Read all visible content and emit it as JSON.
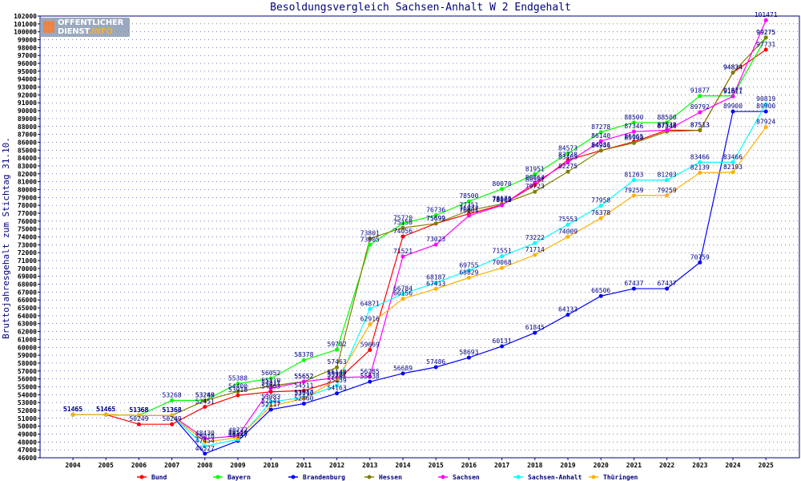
{
  "logo": {
    "line1": "OFFENTLICHER",
    "line2_a": "DIENST",
    "line2_b": ".INFO"
  },
  "chart_data": {
    "type": "line",
    "title": "Besoldungsvergleich Sachsen-Anhalt W 2 Endgehalt",
    "xlabel": "",
    "ylabel": "Bruttojahresgehalt zum Stichtag 31.10.",
    "ylim": [
      46000,
      102000
    ],
    "ytick_step": 1000,
    "categories": [
      "2004",
      "2005",
      "2006",
      "2007",
      "2008",
      "2009",
      "2010",
      "2011",
      "2012",
      "2013",
      "2014",
      "2015",
      "2016",
      "2017",
      "2018",
      "2019",
      "2020",
      "2021",
      "2022",
      "2023",
      "2024",
      "2025"
    ],
    "series": [
      {
        "name": "Bund",
        "color": "#ff0000",
        "values": [
          51465,
          51465,
          50249,
          50249,
          52451,
          53918,
          54363,
          54511,
          55787,
          59669,
          74056,
          75692,
          76932,
          78063,
          80581,
          83738,
          84946,
          86065,
          87538,
          87513,
          94834,
          97731
        ],
        "labels": [
          "51465",
          "51465",
          "50249",
          "50249",
          "52451",
          "53918",
          "54363",
          "54511",
          "55787",
          "59669",
          "74056",
          "75692",
          "76932",
          "78063",
          "80581",
          "83738",
          "84946",
          "86065",
          "87538",
          "87513",
          "94834",
          "97731"
        ]
      },
      {
        "name": "Bayern",
        "color": "#00ff00",
        "values": [
          51465,
          51465,
          51368,
          53268,
          53268,
          55388,
          56052,
          58378,
          59702,
          73005,
          75720,
          76736,
          78500,
          80070,
          81951,
          84573,
          87278,
          88500,
          88500,
          91877,
          91877,
          99275
        ],
        "labels": [
          "51465",
          "51465",
          "51368",
          "53268",
          "53268",
          "55388",
          "56052",
          "58378",
          "59702",
          "73005",
          "75720",
          "76736",
          "78500",
          "80070",
          "81951",
          "84573",
          "87278",
          "88500",
          "88500",
          "91877",
          "91877",
          "99275"
        ]
      },
      {
        "name": "Brandenburg",
        "color": "#0000ff",
        "values": [
          51465,
          51465,
          51368,
          51368,
          46527,
          48137,
          52117,
          52860,
          54163,
          55638,
          56689,
          57486,
          58693,
          60131,
          61845,
          64133,
          66506,
          67437,
          67437,
          70759,
          89900,
          89900
        ],
        "labels": [
          "51465",
          "51465",
          "51368",
          "51368",
          "46527",
          "48137",
          "52117",
          "52860",
          "54163",
          "55638",
          "56689",
          "57486",
          "58693",
          "60131",
          "61845",
          "64133",
          "66506",
          "67437",
          "67437",
          "70759",
          "89900",
          "89900"
        ]
      },
      {
        "name": "Hessen",
        "color": "#808000",
        "values": [
          51465,
          51465,
          51368,
          51368,
          53249,
          54400,
          55110,
          55652,
          57463,
          73801,
          75158,
          75699,
          77351,
          78176,
          79723,
          82275,
          84951,
          85908,
          87346,
          87513,
          94834,
          99275
        ],
        "labels": [
          "51465",
          "51465",
          "51368",
          "51368",
          "53249",
          "54400",
          "55110",
          "55652",
          "57463",
          "73801",
          "75158",
          "75699",
          "77351",
          "78176",
          "79723",
          "82275",
          "84951",
          "85908",
          "87346",
          "87513",
          "94834",
          "99275"
        ]
      },
      {
        "name": "Sachsen",
        "color": "#ff00ff",
        "values": [
          51465,
          51465,
          51368,
          51368,
          48430,
          48777,
          54811,
          55652,
          56148,
          56285,
          71521,
          73023,
          76681,
          78002,
          80864,
          83465,
          86140,
          87346,
          87533,
          89792,
          91811,
          101471
        ],
        "labels": [
          "51465",
          "51465",
          "51368",
          "51368",
          "48430",
          "48777",
          "54811",
          "55652",
          "56148",
          "56285",
          "71521",
          "73023",
          "76681",
          "78002",
          "80864",
          "83465",
          "86140",
          "87346",
          "87533",
          "89792",
          "91811",
          "101471"
        ]
      },
      {
        "name": "Sachsen-Anhalt",
        "color": "#00ffff",
        "values": [
          51465,
          51465,
          51368,
          51368,
          47454,
          48325,
          53083,
          53647,
          55139,
          64871,
          66784,
          68187,
          69755,
          71551,
          73222,
          75553,
          77958,
          81203,
          81203,
          83466,
          83466,
          90819
        ],
        "labels": [
          "51465",
          "51465",
          "51368",
          "51368",
          "47454",
          "48325",
          "53083",
          "53647",
          "55139",
          "64871",
          "66784",
          "68187",
          "69755",
          "71551",
          "73222",
          "75553",
          "77958",
          "81203",
          "81203",
          "83466",
          "83466",
          "90819"
        ]
      },
      {
        "name": "Thüringen",
        "color": "#ffb000",
        "values": [
          51465,
          51465,
          51368,
          51368,
          48010,
          48530,
          52541,
          53510,
          55922,
          62916,
          66156,
          67413,
          68829,
          70068,
          71714,
          74009,
          76378,
          79259,
          79259,
          82139,
          82193,
          87924
        ],
        "labels": [
          "51465",
          "51465",
          "51368",
          "51368",
          "48010",
          "48530",
          "52541",
          "53510",
          "55922",
          "62916",
          "66156",
          "67413",
          "68829",
          "70068",
          "71714",
          "74009",
          "76378",
          "79259",
          "79259",
          "82139",
          "82193",
          "87924"
        ]
      }
    ],
    "legend_position": "bottom"
  }
}
